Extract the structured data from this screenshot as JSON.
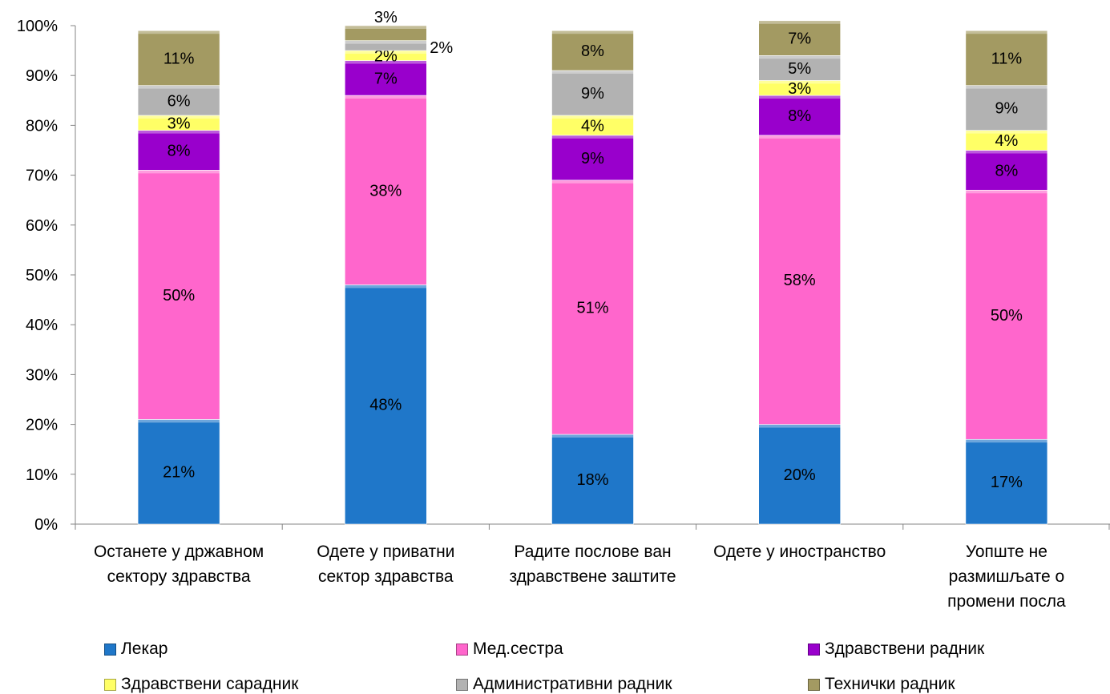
{
  "chart_data": {
    "type": "bar",
    "stacked": "percent",
    "title": "",
    "xlabel": "",
    "ylabel": "",
    "ylim": [
      0,
      100
    ],
    "y_ticks": [
      "0%",
      "10%",
      "20%",
      "30%",
      "40%",
      "50%",
      "60%",
      "70%",
      "80%",
      "90%",
      "100%"
    ],
    "grid": false,
    "legend_position": "bottom",
    "categories": [
      [
        "Останете у државном",
        "сектору здравства"
      ],
      [
        "Одете у приватни",
        "сектор здравства"
      ],
      [
        "Радите послове ван",
        "здравствене заштите"
      ],
      [
        "Одете у иностранство"
      ],
      [
        "Уопште не",
        "размишљате о",
        "промени посла"
      ]
    ],
    "series": [
      {
        "name": "Лекар",
        "color": "#1f77c9",
        "values": [
          21,
          48,
          18,
          20,
          17
        ],
        "labels": [
          "21%",
          "48%",
          "18%",
          "20%",
          "17%"
        ]
      },
      {
        "name": "Мед.сестра",
        "color": "#ff66cc",
        "values": [
          50,
          38,
          51,
          58,
          50
        ],
        "labels": [
          "50%",
          "38%",
          "51%",
          "58%",
          "50%"
        ]
      },
      {
        "name": "Здравствени радник",
        "color": "#9900cc",
        "values": [
          8,
          7,
          9,
          8,
          8
        ],
        "labels": [
          "8%",
          "7%",
          "9%",
          "8%",
          "8%"
        ]
      },
      {
        "name": "Здравствени сарадник",
        "color": "#ffff66",
        "values": [
          3,
          2,
          4,
          3,
          4
        ],
        "labels": [
          "3%",
          "2%",
          "4%",
          "3%",
          "4%"
        ]
      },
      {
        "name": "Административни радник",
        "color": "#b2b2b2",
        "values": [
          6,
          2,
          9,
          5,
          9
        ],
        "labels": [
          "6%",
          "2%",
          "9%",
          "5%",
          "9%"
        ]
      },
      {
        "name": "Технички радник",
        "color": "#a39a62",
        "values": [
          11,
          3,
          8,
          7,
          11
        ],
        "labels": [
          "11%",
          "3%",
          "8%",
          "7%",
          "11%"
        ]
      }
    ]
  }
}
